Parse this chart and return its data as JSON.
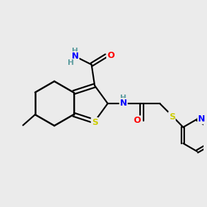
{
  "bg_color": "#ebebeb",
  "C": "#000000",
  "N": "#0000ff",
  "O": "#ff0000",
  "S": "#cccc00",
  "H": "#5f9ea0",
  "lw": 1.6,
  "lw_thick": 1.8
}
